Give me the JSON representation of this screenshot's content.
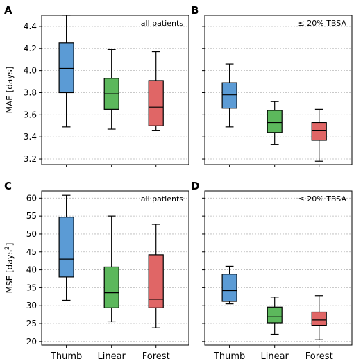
{
  "figure": {
    "categories": [
      "Thumb",
      "Linear",
      "Forest"
    ],
    "colors": {
      "Thumb": "#5b9bd5",
      "Linear": "#5cb85c",
      "Forest": "#e06666"
    }
  },
  "chart_data": [
    {
      "panel": "A",
      "type": "box",
      "annotation": "all patients",
      "ylabel": "MAE [days]",
      "ylim": [
        3.15,
        4.5
      ],
      "yticks": [
        3.2,
        3.4,
        3.6,
        3.8,
        4.0,
        4.2,
        4.4
      ],
      "yticklabels": [
        "3.2",
        "3.4",
        "3.6",
        "3.8",
        "4.0",
        "4.2",
        "4.4"
      ],
      "show_yticklabels": true,
      "show_xticklabels": false,
      "grid": true,
      "boxes": [
        {
          "category": "Thumb",
          "min": 3.49,
          "q1": 3.8,
          "median": 4.02,
          "q3": 4.25,
          "max": 4.5
        },
        {
          "category": "Linear",
          "min": 3.47,
          "q1": 3.65,
          "median": 3.79,
          "q3": 3.93,
          "max": 4.19
        },
        {
          "category": "Forest",
          "min": 3.46,
          "q1": 3.5,
          "median": 3.67,
          "q3": 3.91,
          "max": 4.17
        }
      ]
    },
    {
      "panel": "B",
      "type": "box",
      "annotation": "≤ 20% TBSA",
      "ylabel": "",
      "ylim": [
        3.15,
        4.5
      ],
      "yticks": [
        3.2,
        3.4,
        3.6,
        3.8,
        4.0,
        4.2,
        4.4
      ],
      "show_yticklabels": false,
      "show_xticklabels": false,
      "grid": true,
      "boxes": [
        {
          "category": "Thumb",
          "min": 3.49,
          "q1": 3.66,
          "median": 3.78,
          "q3": 3.89,
          "max": 4.06
        },
        {
          "category": "Linear",
          "min": 3.33,
          "q1": 3.44,
          "median": 3.53,
          "q3": 3.64,
          "max": 3.72
        },
        {
          "category": "Forest",
          "min": 3.18,
          "q1": 3.37,
          "median": 3.46,
          "q3": 3.53,
          "max": 3.65
        }
      ]
    },
    {
      "panel": "C",
      "type": "box",
      "annotation": "all patients",
      "ylabel": "MSE [days",
      "ylabel_sup": "2",
      "ylabel_end": "]",
      "ylim": [
        19,
        62
      ],
      "yticks": [
        20,
        25,
        30,
        35,
        40,
        45,
        50,
        55,
        60
      ],
      "yticklabels": [
        "20",
        "25",
        "30",
        "35",
        "40",
        "45",
        "50",
        "55",
        "60"
      ],
      "show_yticklabels": true,
      "show_xticklabels": true,
      "grid": true,
      "boxes": [
        {
          "category": "Thumb",
          "min": 31.5,
          "q1": 38.0,
          "median": 43.0,
          "q3": 54.7,
          "max": 60.8
        },
        {
          "category": "Linear",
          "min": 25.5,
          "q1": 29.4,
          "median": 33.6,
          "q3": 40.8,
          "max": 55.0
        },
        {
          "category": "Forest",
          "min": 23.8,
          "q1": 29.4,
          "median": 31.8,
          "q3": 44.2,
          "max": 52.7
        }
      ]
    },
    {
      "panel": "D",
      "type": "box",
      "annotation": "≤ 20% TBSA",
      "ylabel": "",
      "ylim": [
        19,
        62
      ],
      "yticks": [
        20,
        25,
        30,
        35,
        40,
        45,
        50,
        55,
        60
      ],
      "show_yticklabels": false,
      "show_xticklabels": true,
      "grid": true,
      "boxes": [
        {
          "category": "Thumb",
          "min": 30.5,
          "q1": 31.2,
          "median": 34.2,
          "q3": 38.8,
          "max": 41.0
        },
        {
          "category": "Linear",
          "min": 22.0,
          "q1": 25.2,
          "median": 26.9,
          "q3": 29.6,
          "max": 32.4
        },
        {
          "category": "Forest",
          "min": 20.5,
          "q1": 24.5,
          "median": 26.0,
          "q3": 28.2,
          "max": 32.8
        }
      ]
    }
  ]
}
